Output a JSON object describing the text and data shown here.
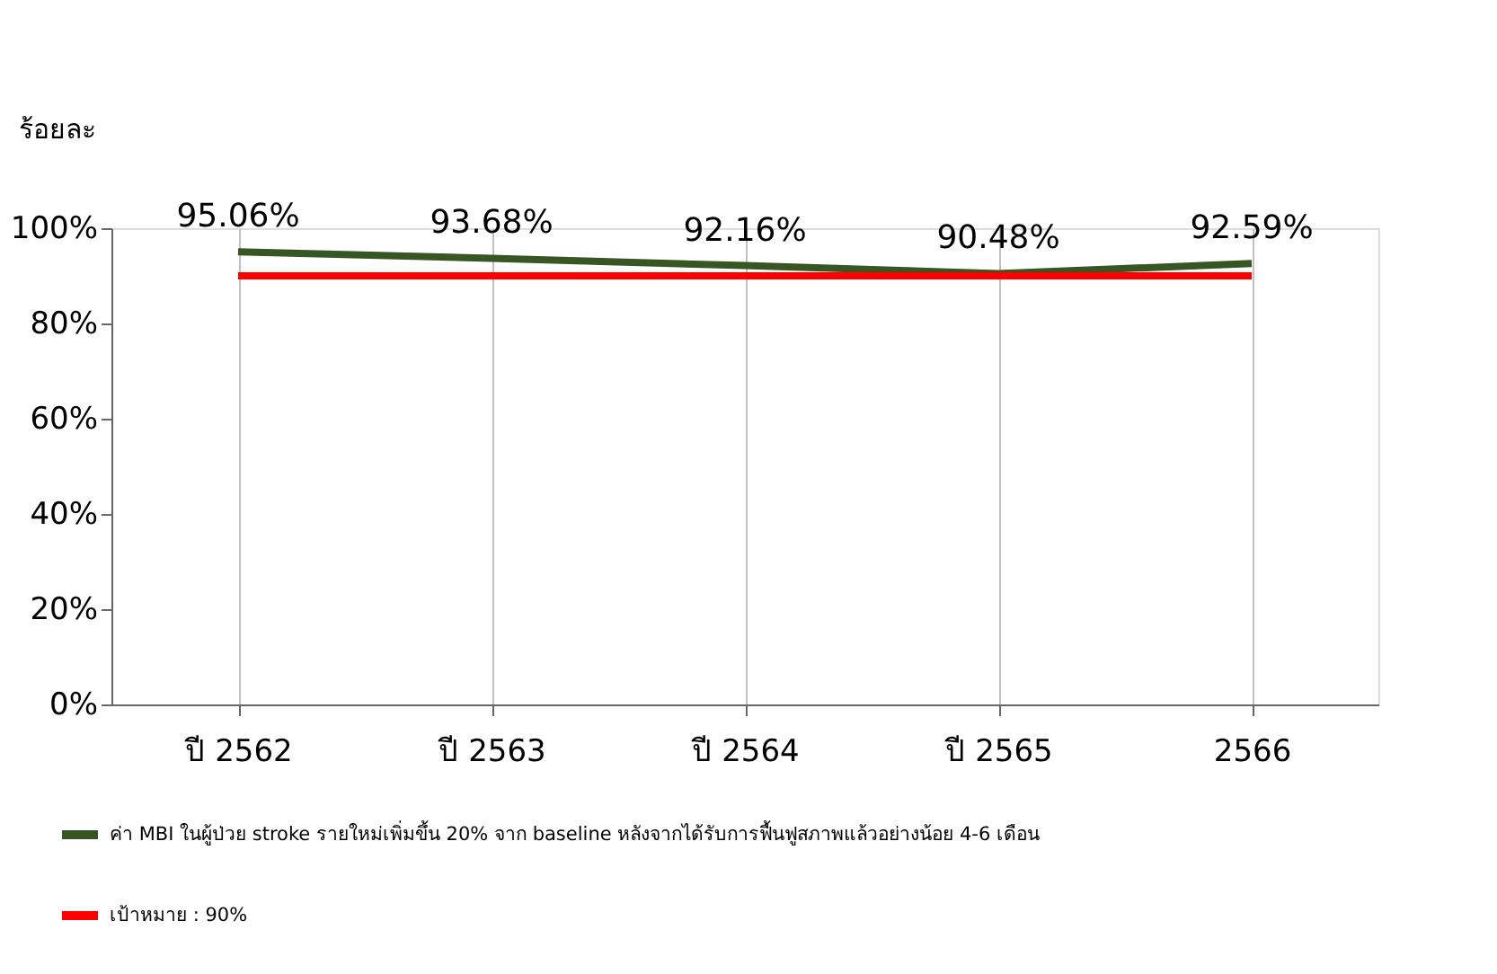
{
  "chart_data": {
    "type": "line",
    "ylabel": "ร้อยละ",
    "categories": [
      "ปี 2562",
      "ปี 2563",
      "ปี 2564",
      "ปี 2565",
      "2566"
    ],
    "series": [
      {
        "name": "ค่า MBI ในผู้ป่วย stroke รายใหม่เพิ่มขึ้น 20% จาก baseline หลังจากได้รับการฟื้นฟูสภาพแล้วอย่างน้อย 4-6 เดือน",
        "color": "#375623",
        "values": [
          95.06,
          93.68,
          92.16,
          90.48,
          92.59
        ],
        "value_labels": [
          "95.06%",
          "93.68%",
          "92.16%",
          "90.48%",
          "92.59%"
        ]
      },
      {
        "name": "เป้าหมาย :  90%",
        "color": "#ff0000",
        "values": [
          90,
          90,
          90,
          90,
          90
        ]
      }
    ],
    "ylim": [
      0,
      100
    ],
    "yticks": [
      {
        "value": 0,
        "label": "0%"
      },
      {
        "value": 20,
        "label": "20%"
      },
      {
        "value": 40,
        "label": "40%"
      },
      {
        "value": 60,
        "label": "60%"
      },
      {
        "value": 80,
        "label": "80%"
      },
      {
        "value": 100,
        "label": "100%"
      }
    ],
    "grid": "x",
    "legend": "bottom",
    "marker": "none",
    "line_style": "solid"
  }
}
